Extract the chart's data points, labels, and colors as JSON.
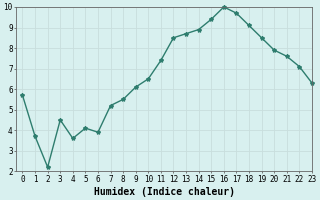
{
  "x": [
    0,
    1,
    2,
    3,
    4,
    5,
    6,
    7,
    8,
    9,
    10,
    11,
    12,
    13,
    14,
    15,
    16,
    17,
    18,
    19,
    20,
    21,
    22,
    23
  ],
  "y": [
    5.7,
    3.7,
    2.2,
    4.5,
    3.6,
    4.1,
    3.9,
    5.2,
    5.5,
    6.1,
    6.5,
    7.4,
    8.5,
    8.7,
    8.9,
    9.4,
    10.0,
    9.7,
    9.1,
    8.5,
    7.9,
    7.6,
    7.1,
    6.3
  ],
  "line_color": "#2e7d6e",
  "marker": "*",
  "marker_size": 3,
  "bg_color": "#d8f0ef",
  "grid_color": "#c8dedd",
  "xlabel": "Humidex (Indice chaleur)",
  "xlim": [
    -0.5,
    23
  ],
  "ylim": [
    2,
    10
  ],
  "yticks": [
    2,
    3,
    4,
    5,
    6,
    7,
    8,
    9,
    10
  ],
  "xticks": [
    0,
    1,
    2,
    3,
    4,
    5,
    6,
    7,
    8,
    9,
    10,
    11,
    12,
    13,
    14,
    15,
    16,
    17,
    18,
    19,
    20,
    21,
    22,
    23
  ],
  "tick_fontsize": 5.5,
  "xlabel_fontsize": 7,
  "line_width": 1.0
}
